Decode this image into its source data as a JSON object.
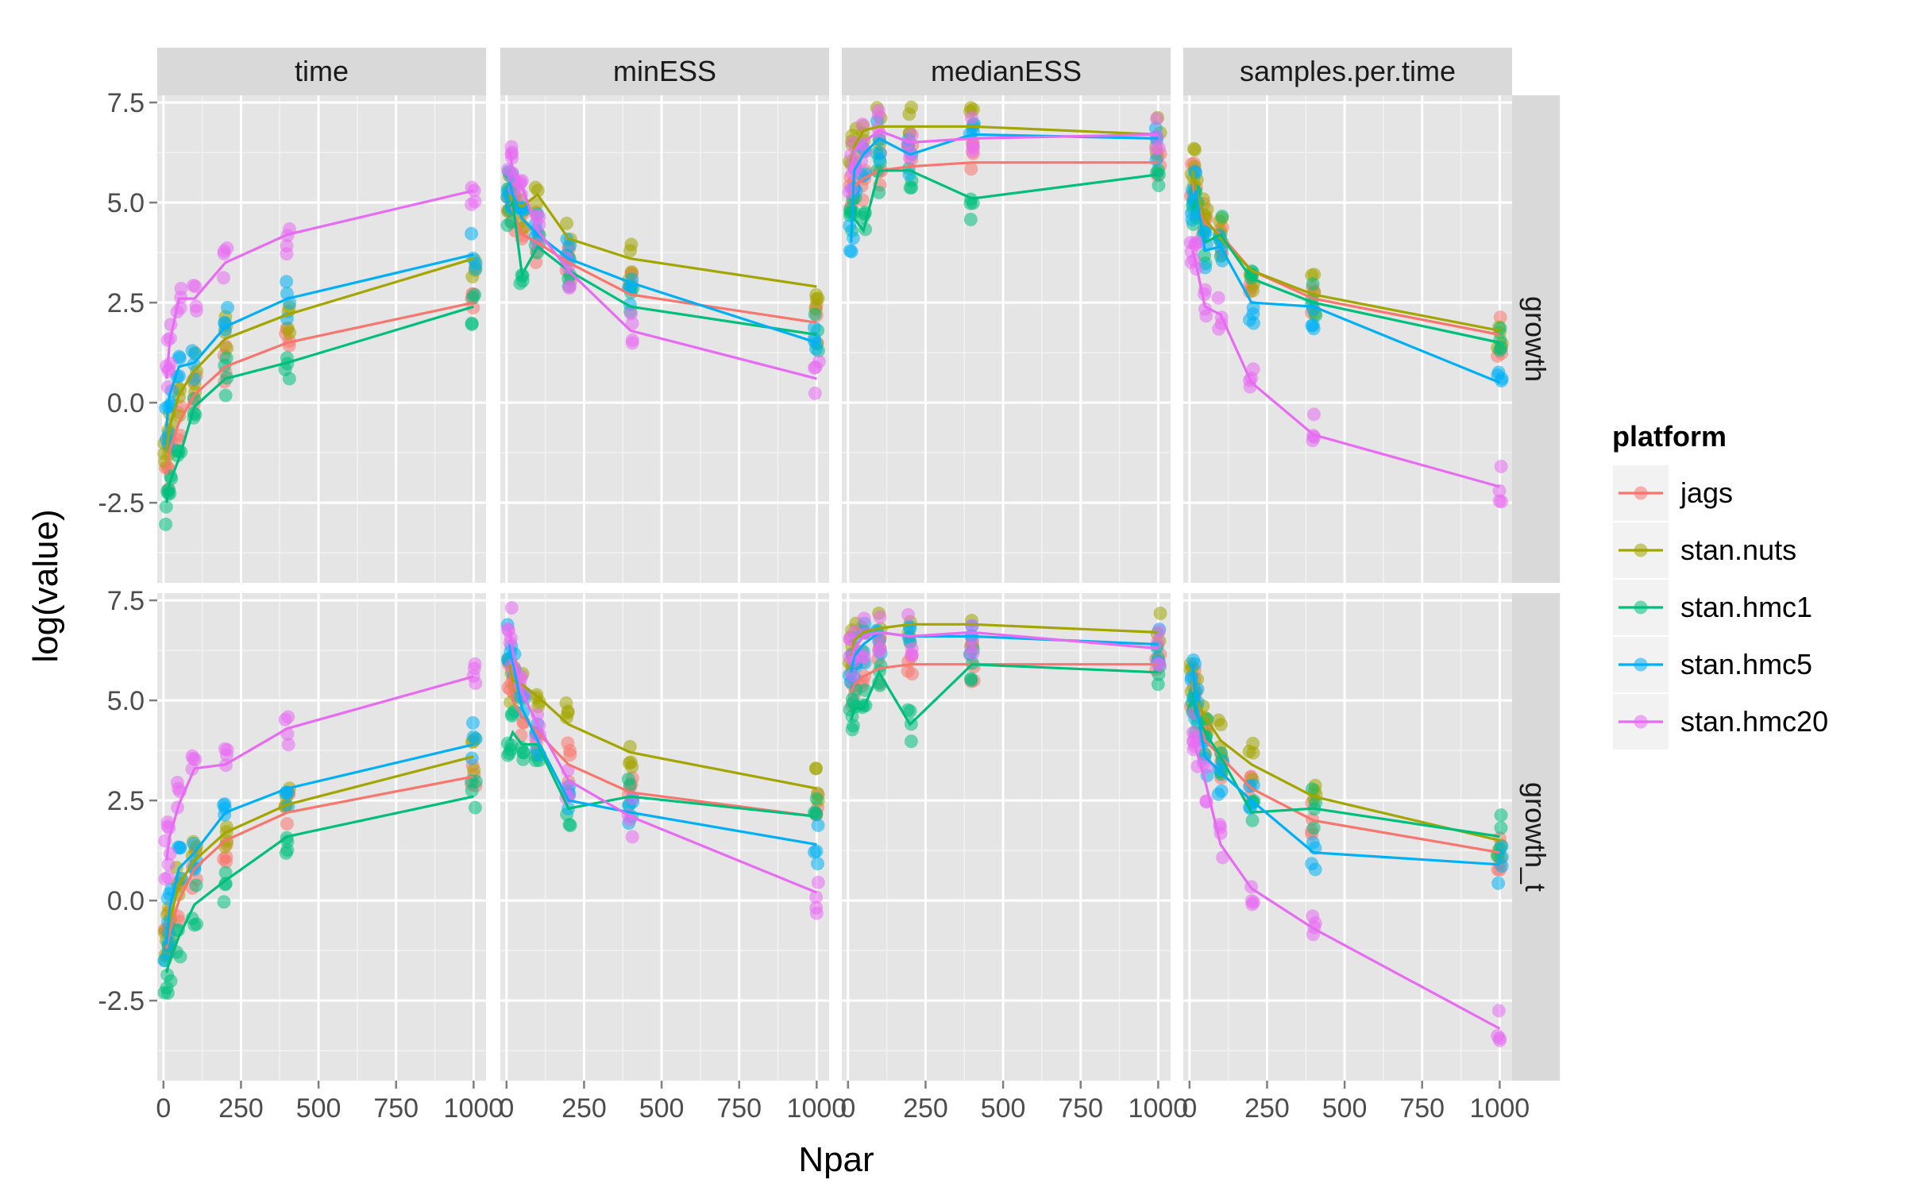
{
  "chart_data": {
    "type": "line",
    "xlabel": "Npar",
    "ylabel": "log(value)",
    "xlim": [
      -20,
      1040
    ],
    "ylim": [
      -4.5,
      7.5
    ],
    "x_ticks": [
      0,
      250,
      500,
      750,
      1000
    ],
    "x_tick_labels": [
      "0",
      "250",
      "500",
      "750",
      "1000"
    ],
    "y_ticks": [
      -2.5,
      0.0,
      2.5,
      5.0,
      7.5
    ],
    "y_tick_labels": [
      "-2.5",
      "0.0",
      "2.5",
      "5.0",
      "7.5"
    ],
    "grid": true,
    "columns": [
      "time",
      "minESS",
      "medianESS",
      "samples.per.time"
    ],
    "rows": [
      "growth",
      "growth_t"
    ],
    "legend": {
      "title": "platform",
      "position": "right",
      "entries": [
        {
          "name": "jags",
          "color": "#F8766D"
        },
        {
          "name": "stan.nuts",
          "color": "#A3A500"
        },
        {
          "name": "stan.hmc1",
          "color": "#00BF7D"
        },
        {
          "name": "stan.hmc5",
          "color": "#00B0F6"
        },
        {
          "name": "stan.hmc20",
          "color": "#E76BF3"
        }
      ]
    },
    "x": [
      10,
      20,
      50,
      100,
      200,
      400,
      1000
    ],
    "panels": [
      {
        "row": "growth",
        "column": "time",
        "series": [
          {
            "name": "jags",
            "values": [
              -1.8,
              -1.2,
              -0.5,
              0.2,
              0.9,
              1.5,
              2.5
            ]
          },
          {
            "name": "stan.nuts",
            "values": [
              -1.2,
              -0.6,
              0.2,
              0.8,
              1.6,
              2.2,
              3.6
            ]
          },
          {
            "name": "stan.hmc1",
            "values": [
              -2.5,
              -2.0,
              -1.4,
              -0.1,
              0.6,
              1.0,
              2.4
            ]
          },
          {
            "name": "stan.hmc5",
            "values": [
              -0.6,
              0.2,
              0.9,
              1.0,
              1.9,
              2.6,
              3.7
            ]
          },
          {
            "name": "stan.hmc20",
            "values": [
              0.6,
              1.5,
              2.6,
              2.6,
              3.5,
              4.2,
              5.3
            ]
          }
        ]
      },
      {
        "row": "growth",
        "column": "minESS",
        "series": [
          {
            "name": "jags",
            "values": [
              5.0,
              4.8,
              4.2,
              4.0,
              3.5,
              2.7,
              2.0
            ]
          },
          {
            "name": "stan.nuts",
            "values": [
              5.2,
              5.0,
              4.9,
              5.2,
              4.1,
              3.6,
              2.9
            ]
          },
          {
            "name": "stan.hmc1",
            "values": [
              4.9,
              5.0,
              3.2,
              3.9,
              3.3,
              2.4,
              1.7
            ]
          },
          {
            "name": "stan.hmc5",
            "values": [
              5.5,
              5.2,
              4.6,
              4.2,
              3.6,
              3.0,
              1.5
            ]
          },
          {
            "name": "stan.hmc20",
            "values": [
              6.3,
              5.8,
              5.4,
              4.3,
              3.3,
              1.8,
              0.6
            ]
          }
        ]
      },
      {
        "row": "growth",
        "column": "medianESS",
        "series": [
          {
            "name": "jags",
            "values": [
              5.2,
              5.4,
              5.6,
              5.8,
              5.9,
              6.0,
              6.0
            ]
          },
          {
            "name": "stan.nuts",
            "values": [
              6.0,
              6.4,
              6.8,
              6.9,
              6.9,
              6.9,
              6.7
            ]
          },
          {
            "name": "stan.hmc1",
            "values": [
              4.5,
              4.6,
              4.3,
              5.8,
              5.8,
              5.1,
              5.7
            ]
          },
          {
            "name": "stan.hmc5",
            "values": [
              4.0,
              5.8,
              6.2,
              6.6,
              6.2,
              6.7,
              6.6
            ]
          },
          {
            "name": "stan.hmc20",
            "values": [
              5.8,
              6.3,
              6.5,
              6.8,
              6.5,
              6.6,
              6.7
            ]
          }
        ]
      },
      {
        "row": "growth",
        "column": "samples.per.time",
        "series": [
          {
            "name": "jags",
            "values": [
              5.5,
              5.0,
              4.5,
              4.2,
              3.3,
              2.6,
              1.7
            ]
          },
          {
            "name": "stan.nuts",
            "values": [
              5.8,
              5.3,
              4.6,
              4.1,
              3.3,
              2.7,
              1.8
            ]
          },
          {
            "name": "stan.hmc1",
            "values": [
              4.8,
              5.1,
              4.0,
              4.2,
              3.1,
              2.5,
              1.5
            ]
          },
          {
            "name": "stan.hmc5",
            "values": [
              5.0,
              5.3,
              3.8,
              3.9,
              2.5,
              2.4,
              0.5
            ]
          },
          {
            "name": "stan.hmc20",
            "values": [
              3.8,
              3.5,
              2.4,
              2.2,
              0.5,
              -0.8,
              -2.1
            ]
          }
        ]
      },
      {
        "row": "growth_t",
        "column": "time",
        "series": [
          {
            "name": "jags",
            "values": [
              -1.2,
              -0.8,
              0.0,
              0.8,
              1.5,
              2.2,
              3.1
            ]
          },
          {
            "name": "stan.nuts",
            "values": [
              -1.0,
              -0.5,
              0.4,
              1.0,
              1.7,
              2.4,
              3.6
            ]
          },
          {
            "name": "stan.hmc1",
            "values": [
              -1.8,
              -1.5,
              -0.9,
              -0.1,
              0.5,
              1.6,
              2.6
            ]
          },
          {
            "name": "stan.hmc5",
            "values": [
              -1.1,
              -0.2,
              0.8,
              1.2,
              2.2,
              2.8,
              3.9
            ]
          },
          {
            "name": "stan.hmc20",
            "values": [
              1.0,
              1.6,
              2.4,
              3.3,
              3.4,
              4.3,
              5.6
            ]
          }
        ]
      },
      {
        "row": "growth_t",
        "column": "minESS",
        "series": [
          {
            "name": "jags",
            "values": [
              5.6,
              5.0,
              4.6,
              4.2,
              3.4,
              2.7,
              2.1
            ]
          },
          {
            "name": "stan.nuts",
            "values": [
              5.9,
              5.5,
              5.4,
              5.1,
              4.4,
              3.7,
              2.8
            ]
          },
          {
            "name": "stan.hmc1",
            "values": [
              4.0,
              4.2,
              3.9,
              3.9,
              2.3,
              2.6,
              2.1
            ]
          },
          {
            "name": "stan.hmc5",
            "values": [
              6.4,
              6.0,
              4.8,
              4.0,
              2.5,
              2.2,
              1.4
            ]
          },
          {
            "name": "stan.hmc20",
            "values": [
              6.8,
              6.2,
              5.2,
              4.4,
              3.0,
              2.1,
              0.2
            ]
          }
        ]
      },
      {
        "row": "growth_t",
        "column": "medianESS",
        "series": [
          {
            "name": "jags",
            "values": [
              5.2,
              5.4,
              5.6,
              5.8,
              5.9,
              5.9,
              5.9
            ]
          },
          {
            "name": "stan.nuts",
            "values": [
              6.1,
              6.5,
              6.7,
              6.8,
              6.9,
              6.9,
              6.7
            ]
          },
          {
            "name": "stan.hmc1",
            "values": [
              4.5,
              4.8,
              4.8,
              5.7,
              4.4,
              5.9,
              5.7
            ]
          },
          {
            "name": "stan.hmc5",
            "values": [
              5.7,
              6.1,
              6.4,
              6.7,
              6.6,
              6.6,
              6.4
            ]
          },
          {
            "name": "stan.hmc20",
            "values": [
              6.0,
              6.3,
              6.6,
              6.7,
              6.6,
              6.7,
              6.3
            ]
          }
        ]
      },
      {
        "row": "growth_t",
        "column": "samples.per.time",
        "series": [
          {
            "name": "jags",
            "values": [
              5.4,
              4.8,
              4.0,
              3.6,
              2.8,
              2.0,
              1.2
            ]
          },
          {
            "name": "stan.nuts",
            "values": [
              5.5,
              5.0,
              4.6,
              4.0,
              3.4,
              2.6,
              1.5
            ]
          },
          {
            "name": "stan.hmc1",
            "values": [
              5.2,
              4.7,
              4.2,
              3.6,
              2.2,
              2.3,
              1.6
            ]
          },
          {
            "name": "stan.hmc5",
            "values": [
              5.9,
              5.0,
              3.6,
              3.2,
              2.5,
              1.2,
              0.9
            ]
          },
          {
            "name": "stan.hmc20",
            "values": [
              4.2,
              3.8,
              3.0,
              1.4,
              0.3,
              -0.7,
              -3.2
            ]
          }
        ]
      }
    ]
  }
}
